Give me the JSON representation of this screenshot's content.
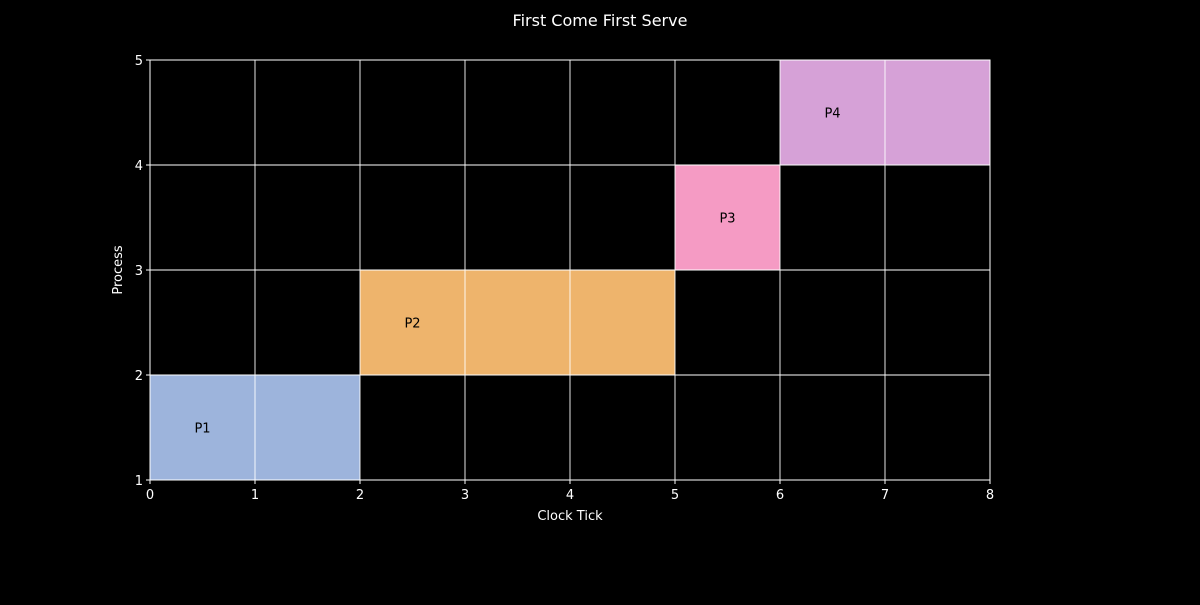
{
  "chart_data": {
    "type": "bar",
    "orientation": "horizontal-gantt",
    "title": "First Come First Serve",
    "xlabel": "Clock Tick",
    "ylabel": "Process",
    "xlim": [
      0,
      8
    ],
    "ylim": [
      1,
      5
    ],
    "xticks": [
      0,
      1,
      2,
      3,
      4,
      5,
      6,
      7,
      8
    ],
    "yticks": [
      1,
      2,
      3,
      4,
      5
    ],
    "grid": true,
    "background_color": "#000000",
    "series": [
      {
        "label": "P1",
        "start": 0,
        "end": 2,
        "y_low": 1,
        "y_high": 2,
        "color": "#9db4dc"
      },
      {
        "label": "P2",
        "start": 2,
        "end": 5,
        "y_low": 2,
        "y_high": 3,
        "color": "#eeb46c"
      },
      {
        "label": "P3",
        "start": 5,
        "end": 6,
        "y_low": 3,
        "y_high": 4,
        "color": "#f59bc4"
      },
      {
        "label": "P4",
        "start": 6,
        "end": 8,
        "y_low": 4,
        "y_high": 5,
        "color": "#d6a1d7"
      }
    ]
  }
}
